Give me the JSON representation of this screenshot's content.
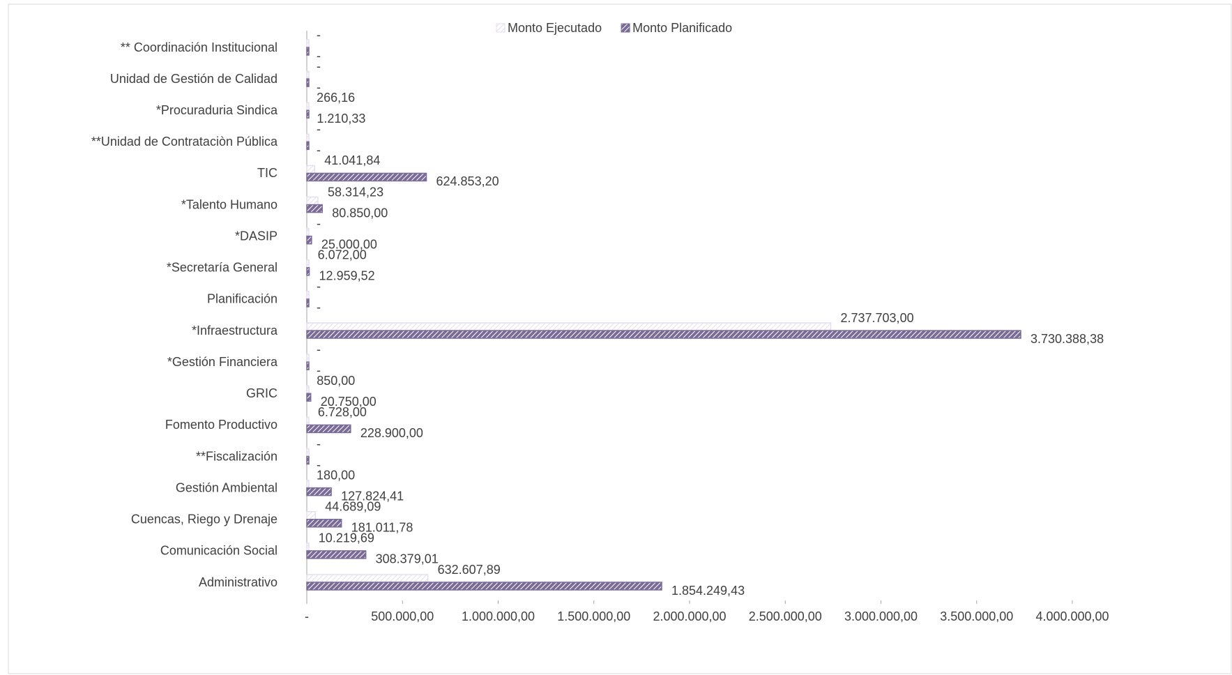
{
  "chart_data": {
    "type": "hbar",
    "categories": [
      "** Coordinación Institucional",
      "Unidad de Gestión de Calidad",
      "*Procuraduria Sindica",
      "**Unidad de Contrataciòn Pública",
      "TIC",
      "*Talento Humano",
      "*DASIP",
      "*Secretaría General",
      "Planificación",
      "*Infraestructura",
      "*Gestión Financiera",
      "GRIC",
      "Fomento Productivo",
      "**Fiscalización",
      "Gestión Ambiental",
      "Cuencas, Riego y Drenaje",
      "Comunicación Social",
      "Administrativo"
    ],
    "series": [
      {
        "name": "Monto Ejecutado",
        "color": "#e4deee",
        "values": [
          0,
          0,
          266.16,
          0,
          41041.84,
          58314.23,
          0,
          6072,
          0,
          2737703,
          0,
          850,
          6728,
          0,
          180,
          44689.09,
          10219.69,
          632607.89
        ],
        "value_labels": [
          "-",
          "-",
          "266,16",
          "-",
          "41.041,84",
          "58.314,23",
          "-",
          "6.072,00",
          "-",
          "2.737.703,00",
          "-",
          "850,00",
          "6.728,00",
          "-",
          "180,00",
          "44.689,09",
          "10.219,69",
          "632.607,89"
        ]
      },
      {
        "name": "Monto Planificado",
        "color": "#7b6b98",
        "values": [
          0,
          0,
          1210.33,
          0,
          624853.2,
          80850,
          25000,
          12959.52,
          0,
          3730388.38,
          0,
          20750,
          228900,
          0,
          127824.41,
          181011.78,
          308379.01,
          1854249.43
        ],
        "value_labels": [
          "-",
          "-",
          "1.210,33",
          "-",
          "624.853,20",
          "80.850,00",
          "25.000,00",
          "12.959,52",
          "-",
          "3.730.388,38",
          "-",
          "20.750,00",
          "228.900,00",
          "-",
          "127.824,41",
          "181.011,78",
          "308.379,01",
          "1.854.249,43"
        ]
      }
    ],
    "xlim": [
      0,
      4000000
    ],
    "xticks": [
      {
        "value": 0,
        "label": "-"
      },
      {
        "value": 500000,
        "label": "500.000,00"
      },
      {
        "value": 1000000,
        "label": "1.000.000,00"
      },
      {
        "value": 1500000,
        "label": "1.500.000,00"
      },
      {
        "value": 2000000,
        "label": "2.000.000,00"
      },
      {
        "value": 2500000,
        "label": "2.500.000,00"
      },
      {
        "value": 3000000,
        "label": "3.000.000,00"
      },
      {
        "value": 3500000,
        "label": "3.500.000,00"
      },
      {
        "value": 4000000,
        "label": "4.000.000,00"
      }
    ],
    "legend": "top"
  }
}
